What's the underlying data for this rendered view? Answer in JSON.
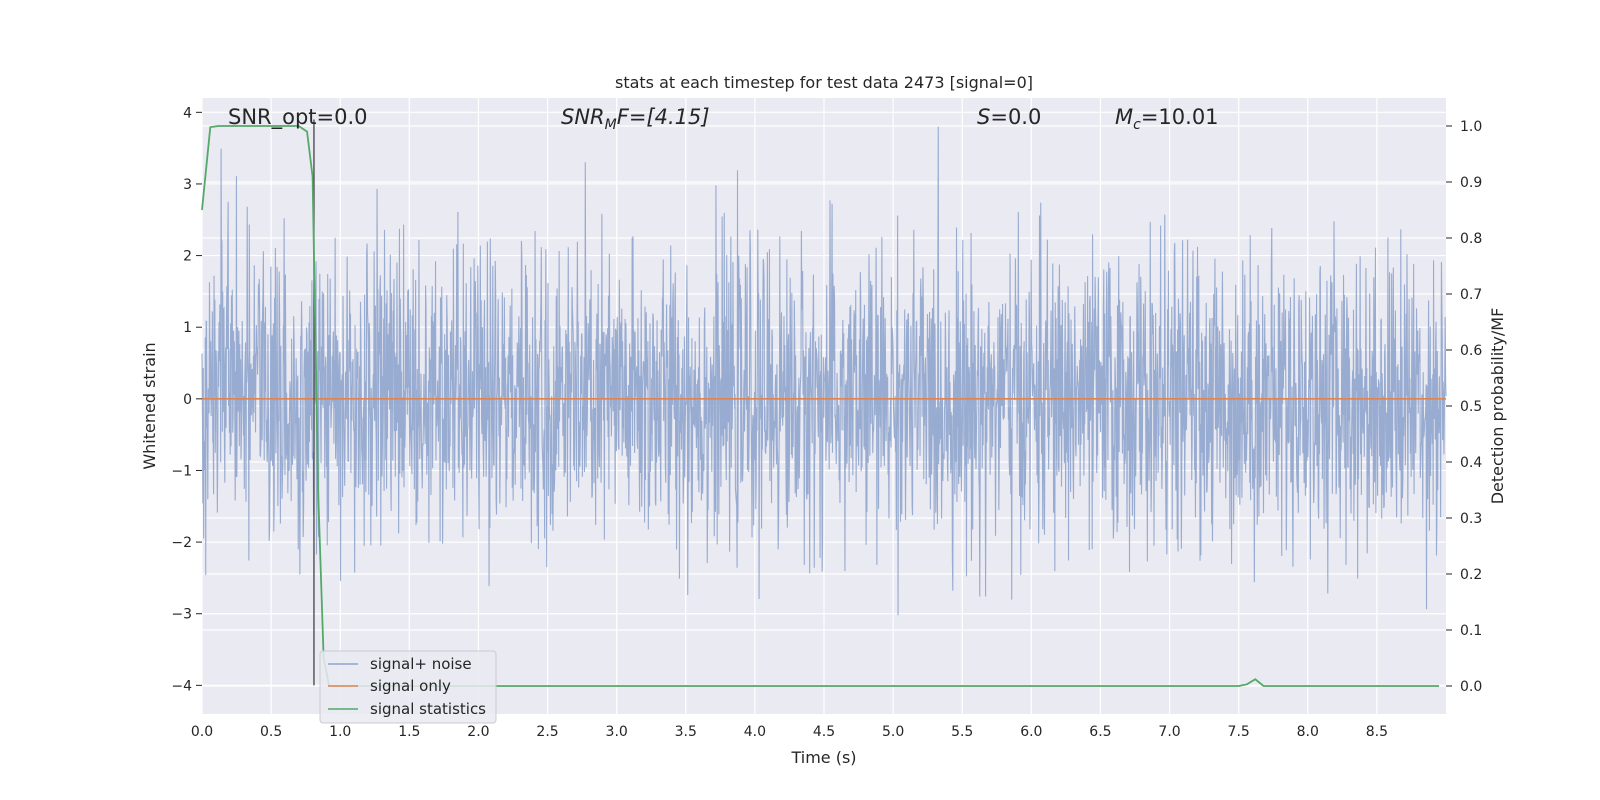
{
  "chart_data": {
    "type": "line",
    "title": "stats at each timestep for test data 2473 [signal=0]",
    "xlabel": "Time (s)",
    "ylabel": "Whitened strain",
    "ylabel_right": "Detection probability/MF",
    "xlim": [
      0.0,
      9.0
    ],
    "ylim": [
      -4.4,
      4.2
    ],
    "ylim_right": [
      -0.05,
      1.05
    ],
    "x_ticks": [
      "0.0",
      "0.5",
      "1.0",
      "1.5",
      "2.0",
      "2.5",
      "3.0",
      "3.5",
      "4.0",
      "4.5",
      "5.0",
      "5.5",
      "6.0",
      "6.5",
      "7.0",
      "7.5",
      "8.0",
      "8.5"
    ],
    "y_ticks": [
      "4",
      "3",
      "2",
      "1",
      "0",
      "−1",
      "−2",
      "−3",
      "−4"
    ],
    "y_ticks_right": [
      "1.0",
      "0.9",
      "0.8",
      "0.7",
      "0.6",
      "0.5",
      "0.4",
      "0.3",
      "0.2",
      "0.1",
      "0.0"
    ],
    "grid": true,
    "legend_position": "lower-left",
    "annotations": {
      "snr_opt": "SNR_opt=0.0",
      "snr_mf_base": "SNR",
      "snr_mf_sub": "M",
      "snr_mf_rest": "F=[4.15]",
      "s_label": "S",
      "s_value": "=0.0",
      "mc_base": "M",
      "mc_sub": "c",
      "mc_value": "=10.01"
    },
    "vertical_marker_x": 0.81,
    "series": [
      {
        "name": "signal+ noise",
        "color": "#8fa4cc",
        "description": "whitened noise, roughly Gaussian with peaks reaching about ±3.8",
        "y_min": -3.9,
        "y_max": 3.8
      },
      {
        "name": "signal only",
        "color": "#dd8452",
        "x": [
          0.0,
          9.0
        ],
        "y": [
          0.0,
          0.0
        ]
      },
      {
        "name": "signal statistics",
        "color": "#55a868",
        "axis": "right",
        "x": [
          0.0,
          0.06,
          0.12,
          0.2,
          0.3,
          0.5,
          0.7,
          0.76,
          0.8,
          0.84,
          0.88,
          0.92,
          1.0,
          2.0,
          3.0,
          4.0,
          5.0,
          6.0,
          7.0,
          7.5,
          7.56,
          7.62,
          7.68,
          7.75,
          8.0,
          8.5,
          8.95
        ],
        "y": [
          0.85,
          0.998,
          1.0,
          1.0,
          1.0,
          1.0,
          1.0,
          0.99,
          0.91,
          0.35,
          0.05,
          0.0,
          0.0,
          0.0,
          0.0,
          0.0,
          0.0,
          0.0,
          0.0,
          0.0,
          0.003,
          0.012,
          0.0,
          0.0,
          0.0,
          0.0,
          0.0
        ]
      }
    ]
  }
}
